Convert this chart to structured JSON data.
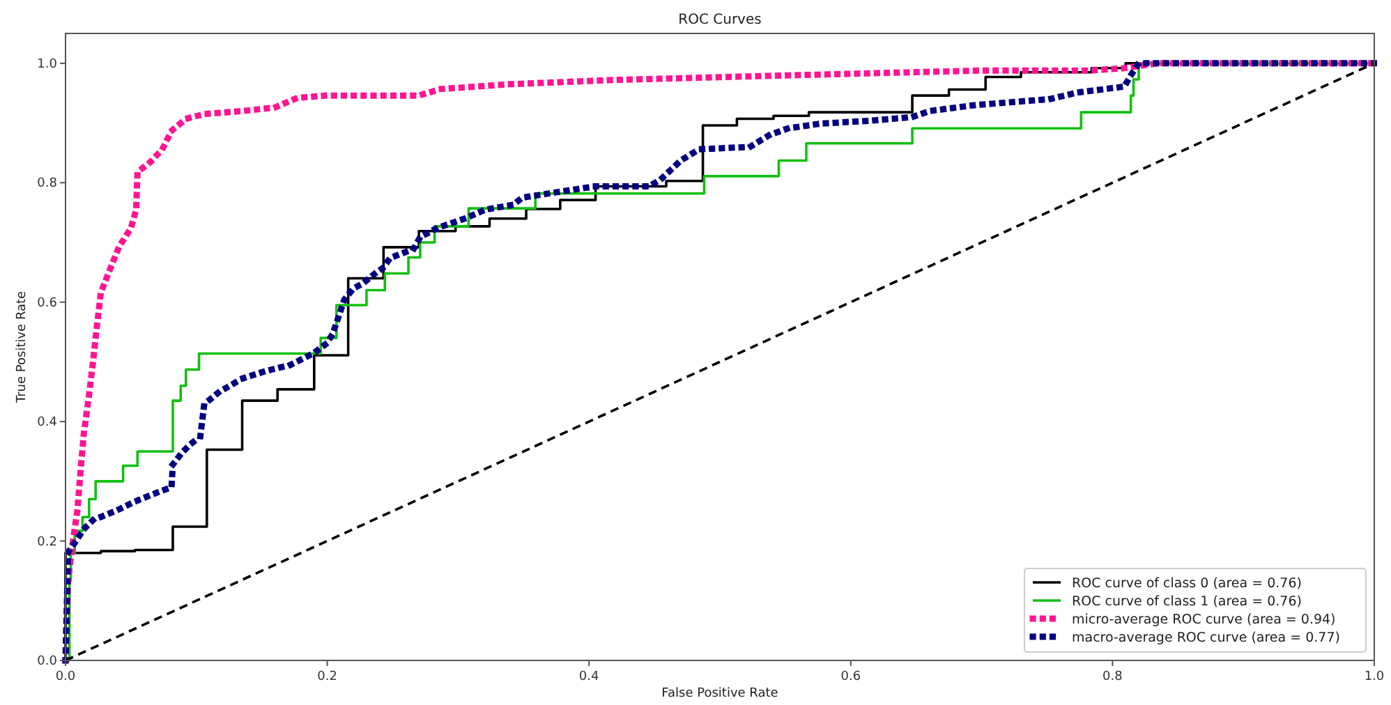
{
  "chart_data": {
    "type": "line",
    "title": "ROC Curves",
    "xlabel": "False Positive Rate",
    "ylabel": "True Positive Rate",
    "xlim": [
      0,
      1
    ],
    "ylim": [
      0,
      1.05
    ],
    "xticks": [
      {
        "value": 0,
        "label": "0.0"
      },
      0.2,
      0.4,
      0.6,
      0.8,
      {
        "value": 1,
        "label": "1.0"
      }
    ],
    "yticks": [
      {
        "value": 0,
        "label": "0.0"
      },
      0.2,
      0.4,
      0.6,
      0.8,
      {
        "value": 1,
        "label": "1.0"
      }
    ],
    "grid": false,
    "legend": "bottom right",
    "marker": "none",
    "series": [
      {
        "name": "ROC curve of class 0 (area = 0.76)",
        "type": "step",
        "color": "#000000",
        "line_style": "solid",
        "x": [
          0,
          0,
          0.027,
          0.053,
          0.082,
          0.108,
          0.135,
          0.162,
          0.19,
          0.216,
          0.243,
          0.27,
          0.298,
          0.324,
          0.352,
          0.378,
          0.405,
          0.459,
          0.487,
          0.513,
          0.541,
          0.568,
          0.647,
          0.675,
          0.703,
          0.73,
          0.784,
          0.81,
          1
        ],
        "values": [
          0,
          0.18,
          0.183,
          0.185,
          0.224,
          0.353,
          0.435,
          0.454,
          0.511,
          0.64,
          0.692,
          0.719,
          0.727,
          0.74,
          0.756,
          0.771,
          0.794,
          0.803,
          0.896,
          0.907,
          0.912,
          0.918,
          0.946,
          0.956,
          0.977,
          0.985,
          0.992,
          1.0,
          1.0
        ]
      },
      {
        "name": "ROC curve of class 1 (area = 0.76)",
        "type": "step",
        "color": "#11c011",
        "line_style": "solid",
        "x": [
          0,
          0.003,
          0.004,
          0.007,
          0.013,
          0.018,
          0.023,
          0.044,
          0.055,
          0.082,
          0.088,
          0.092,
          0.102,
          0.195,
          0.207,
          0.23,
          0.244,
          0.262,
          0.271,
          0.282,
          0.308,
          0.359,
          0.488,
          0.545,
          0.566,
          0.647,
          0.776,
          0.814,
          0.816,
          0.82,
          1
        ],
        "values": [
          0,
          0.134,
          0.18,
          0.217,
          0.24,
          0.27,
          0.3,
          0.326,
          0.35,
          0.435,
          0.46,
          0.487,
          0.514,
          0.54,
          0.595,
          0.62,
          0.648,
          0.675,
          0.7,
          0.727,
          0.757,
          0.782,
          0.811,
          0.837,
          0.866,
          0.891,
          0.918,
          0.946,
          0.973,
          1.0,
          1.0
        ]
      },
      {
        "name": "micro-average ROC curve (area = 0.94)",
        "type": "line",
        "color": "#ff1493",
        "line_style": "dotted",
        "x": [
          0,
          0.002,
          0.005,
          0.009,
          0.012,
          0.014,
          0.018,
          0.021,
          0.024,
          0.027,
          0.034,
          0.041,
          0.05,
          0.054,
          0.055,
          0.064,
          0.074,
          0.081,
          0.092,
          0.106,
          0.135,
          0.16,
          0.177,
          0.199,
          0.27,
          0.287,
          0.34,
          0.418,
          0.539,
          0.628,
          0.703,
          0.784,
          0.81,
          0.824,
          0.835,
          1
        ],
        "values": [
          0,
          0.134,
          0.19,
          0.25,
          0.33,
          0.38,
          0.445,
          0.5,
          0.56,
          0.616,
          0.655,
          0.693,
          0.724,
          0.755,
          0.818,
          0.833,
          0.856,
          0.887,
          0.907,
          0.915,
          0.92,
          0.926,
          0.942,
          0.946,
          0.946,
          0.957,
          0.965,
          0.972,
          0.979,
          0.984,
          0.988,
          0.988,
          0.992,
          0.997,
          1.0,
          1.0
        ]
      },
      {
        "name": "macro-average ROC curve (area = 0.77)",
        "type": "line",
        "color": "#000080",
        "line_style": "dotted",
        "x": [
          0,
          0.002,
          0.008,
          0.014,
          0.021,
          0.039,
          0.053,
          0.071,
          0.081,
          0.082,
          0.089,
          0.096,
          0.103,
          0.106,
          0.117,
          0.135,
          0.152,
          0.172,
          0.19,
          0.199,
          0.204,
          0.207,
          0.213,
          0.22,
          0.227,
          0.236,
          0.243,
          0.248,
          0.266,
          0.271,
          0.284,
          0.305,
          0.321,
          0.342,
          0.349,
          0.381,
          0.405,
          0.446,
          0.455,
          0.47,
          0.484,
          0.523,
          0.538,
          0.552,
          0.577,
          0.616,
          0.647,
          0.66,
          0.695,
          0.752,
          0.773,
          0.809,
          0.814,
          0.82,
          1
        ],
        "values": [
          0,
          0.181,
          0.2,
          0.22,
          0.235,
          0.251,
          0.266,
          0.282,
          0.29,
          0.328,
          0.348,
          0.363,
          0.375,
          0.429,
          0.449,
          0.472,
          0.484,
          0.495,
          0.515,
          0.53,
          0.546,
          0.565,
          0.604,
          0.623,
          0.631,
          0.647,
          0.658,
          0.674,
          0.689,
          0.709,
          0.724,
          0.74,
          0.755,
          0.763,
          0.775,
          0.786,
          0.794,
          0.794,
          0.806,
          0.837,
          0.856,
          0.86,
          0.88,
          0.891,
          0.899,
          0.904,
          0.91,
          0.92,
          0.93,
          0.94,
          0.951,
          0.961,
          0.98,
          1.0,
          1.0
        ]
      },
      {
        "type": "line",
        "color": "#000000",
        "line_style": "dashed",
        "x": [
          0,
          1
        ],
        "values": [
          0,
          1
        ]
      }
    ]
  }
}
